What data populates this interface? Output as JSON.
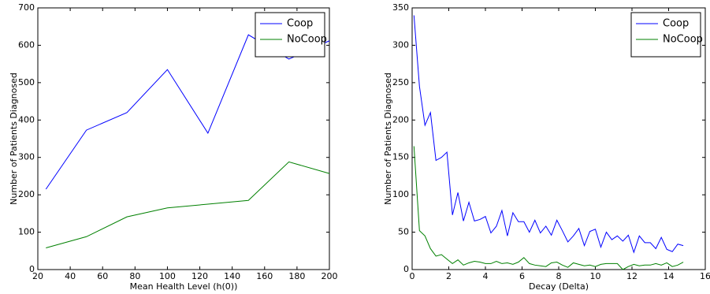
{
  "chart_data": [
    {
      "type": "line",
      "xlabel": "Mean Health Level (h(0))",
      "ylabel": "Number of Patients Diagnosed",
      "x": [
        25,
        50,
        75,
        100,
        125,
        150,
        175,
        200
      ],
      "series": [
        {
          "name": "Coop",
          "color": "#0000ff",
          "values": [
            215,
            373,
            420,
            535,
            365,
            628,
            563,
            612
          ]
        },
        {
          "name": "NoCoop",
          "color": "#008000",
          "values": [
            58,
            88,
            141,
            165,
            175,
            185,
            288,
            257
          ]
        }
      ],
      "xlim": [
        20,
        200
      ],
      "xticks": [
        20,
        40,
        60,
        80,
        100,
        120,
        140,
        160,
        180,
        200
      ],
      "ylim": [
        0,
        700
      ],
      "yticks": [
        0,
        100,
        200,
        300,
        400,
        500,
        600,
        700
      ],
      "legend": "upper right"
    },
    {
      "type": "line",
      "xlabel": "Decay (Delta)",
      "ylabel": "Number of Patients Diagnosed",
      "x": [
        0.1,
        0.4,
        0.7,
        1.0,
        1.3,
        1.6,
        1.9,
        2.2,
        2.5,
        2.8,
        3.1,
        3.4,
        3.7,
        4.0,
        4.3,
        4.6,
        4.9,
        5.2,
        5.5,
        5.8,
        6.1,
        6.4,
        6.7,
        7.0,
        7.3,
        7.6,
        7.9,
        8.2,
        8.5,
        8.8,
        9.1,
        9.4,
        9.7,
        10.0,
        10.3,
        10.6,
        10.9,
        11.2,
        11.5,
        11.8,
        12.1,
        12.4,
        12.7,
        13.0,
        13.3,
        13.6,
        13.9,
        14.2,
        14.5,
        14.8
      ],
      "series": [
        {
          "name": "Coop",
          "color": "#0000ff",
          "values": [
            340,
            245,
            193,
            210,
            146,
            150,
            157,
            73,
            103,
            65,
            90,
            65,
            67,
            71,
            49,
            58,
            79,
            45,
            76,
            64,
            64,
            50,
            66,
            49,
            58,
            46,
            66,
            52,
            37,
            45,
            55,
            32,
            51,
            54,
            30,
            50,
            40,
            45,
            38,
            46,
            23,
            45,
            36,
            36,
            28,
            43,
            27,
            24,
            34,
            32
          ]
        },
        {
          "name": "NoCoop",
          "color": "#008000",
          "values": [
            165,
            52,
            45,
            28,
            18,
            20,
            14,
            8,
            13,
            6,
            9,
            11,
            10,
            8,
            8,
            11,
            8,
            9,
            7,
            10,
            16,
            8,
            6,
            5,
            4,
            9,
            10,
            6,
            3,
            9,
            7,
            5,
            6,
            4,
            7,
            8,
            8,
            8,
            0,
            4,
            7,
            5,
            6,
            6,
            8,
            6,
            9,
            4,
            6,
            10
          ]
        }
      ],
      "xlim": [
        0,
        16
      ],
      "xticks": [
        0,
        2,
        4,
        6,
        8,
        10,
        12,
        14,
        16
      ],
      "ylim": [
        0,
        350
      ],
      "yticks": [
        0,
        50,
        100,
        150,
        200,
        250,
        300,
        350
      ],
      "legend": "upper right"
    }
  ]
}
